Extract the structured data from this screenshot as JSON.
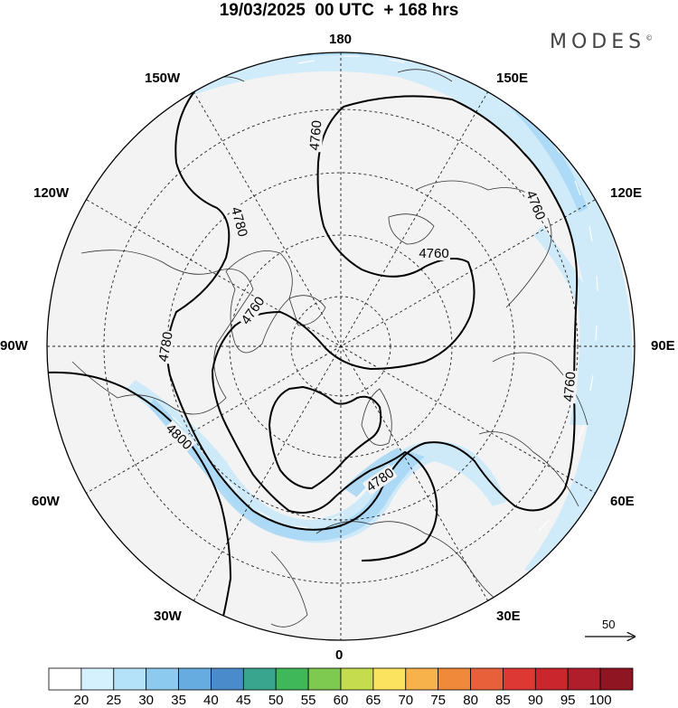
{
  "title": "19/03/2025  00 UTC  + 168 hrs",
  "brand": {
    "name": "MODES",
    "mark": "©"
  },
  "longitude_labels": {
    "top": "180",
    "bottom": "0",
    "left": "90W",
    "right": "90E",
    "upper_left_1": "150W",
    "upper_left_2": "120W",
    "lower_left_1": "60W",
    "lower_left_2": "30W",
    "upper_right_1": "150E",
    "upper_right_2": "120E",
    "lower_right_1": "60E",
    "lower_right_2": "30E"
  },
  "contours": [
    {
      "label": "4760"
    },
    {
      "label": "4760"
    },
    {
      "label": "4760"
    },
    {
      "label": "4760"
    },
    {
      "label": "4760"
    },
    {
      "label": "4780"
    },
    {
      "label": "4780"
    },
    {
      "label": "4780"
    },
    {
      "label": "4800"
    }
  ],
  "vector_scale": {
    "label": "50"
  },
  "colorbar": {
    "colors": [
      "#ffffff",
      "#d4f1fd",
      "#b3e2f9",
      "#8dcaf0",
      "#67ace0",
      "#4a8ccb",
      "#3aa58f",
      "#3fb85a",
      "#7ec94f",
      "#c6dc4f",
      "#fce35f",
      "#f7b24c",
      "#f08a3a",
      "#e8603a",
      "#dd3833",
      "#c9262e",
      "#b01e2b",
      "#8f1522"
    ],
    "labels": [
      "20",
      "25",
      "30",
      "35",
      "40",
      "45",
      "50",
      "55",
      "60",
      "65",
      "70",
      "75",
      "80",
      "85",
      "90",
      "95",
      "100"
    ]
  }
}
